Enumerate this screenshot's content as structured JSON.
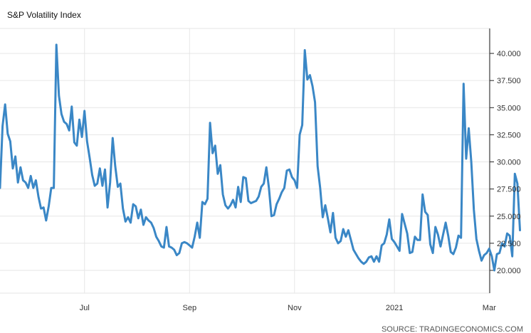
{
  "chart_data": {
    "type": "line",
    "title": "S&P Volatility Index",
    "source": "SOURCE: TRADINGECONOMICS.COM",
    "xlabel": "",
    "ylabel": "",
    "ylim": [
      17.9,
      42.3
    ],
    "xlim": [
      0,
      191.2
    ],
    "grid": true,
    "y_ticks": [
      "20.000",
      "22.500",
      "25.000",
      "27.500",
      "30.000",
      "32.500",
      "35.000",
      "37.500",
      "40.000"
    ],
    "x_ticks": [
      {
        "label": "Jul",
        "index": 33
      },
      {
        "label": "Sep",
        "index": 74
      },
      {
        "label": "Nov",
        "index": 115
      },
      {
        "label": "2021",
        "index": 154
      },
      {
        "label": "Mar",
        "index": 191
      }
    ],
    "series": [
      {
        "color": "#3a87c6",
        "values": [
          27.6,
          33.3,
          35.3,
          32.6,
          31.9,
          29.4,
          30.5,
          28.1,
          29.5,
          28.3,
          28.1,
          27.6,
          28.7,
          27.6,
          28.3,
          26.8,
          25.7,
          25.8,
          24.6,
          25.9,
          27.6,
          27.6,
          40.8,
          36.1,
          34.4,
          33.7,
          33.5,
          32.9,
          35.1,
          31.8,
          31.5,
          33.9,
          32.3,
          34.7,
          31.9,
          30.4,
          28.8,
          27.8,
          28.0,
          29.4,
          27.8,
          29.3,
          25.8,
          28.1,
          32.2,
          29.6,
          27.7,
          28.0,
          25.7,
          24.5,
          24.9,
          24.4,
          26.1,
          25.9,
          24.8,
          25.6,
          24.2,
          24.9,
          24.6,
          24.4,
          23.9,
          23.1,
          22.7,
          22.2,
          22.1,
          24.0,
          22.2,
          22.1,
          21.9,
          21.4,
          21.6,
          22.5,
          22.6,
          22.5,
          22.3,
          22.1,
          23.1,
          24.4,
          23.0,
          26.3,
          26.1,
          26.6,
          33.6,
          30.8,
          31.5,
          28.9,
          29.7,
          27.0,
          26.0,
          25.7,
          26.0,
          26.5,
          25.8,
          27.7,
          26.3,
          28.6,
          28.5,
          26.4,
          26.2,
          26.3,
          26.4,
          26.8,
          27.7,
          28.0,
          29.5,
          27.6,
          25.0,
          25.1,
          26.1,
          26.6,
          27.2,
          27.6,
          29.2,
          29.3,
          28.6,
          28.3,
          27.6,
          32.5,
          33.4,
          40.3,
          37.6,
          38.0,
          37.0,
          35.5,
          29.6,
          27.6,
          24.9,
          26.0,
          24.8,
          23.5,
          25.3,
          23.0,
          22.5,
          22.7,
          23.8,
          23.1,
          23.7,
          22.8,
          21.9,
          21.5,
          21.1,
          20.8,
          20.6,
          20.8,
          21.2,
          21.3,
          20.8,
          21.3,
          20.8,
          22.3,
          22.5,
          23.3,
          24.7,
          22.9,
          22.6,
          22.2,
          21.8,
          25.2,
          24.3,
          23.4,
          21.6,
          21.7,
          23.1,
          22.8,
          22.8,
          27.0,
          25.4,
          25.1,
          22.4,
          21.6,
          24.0,
          23.3,
          22.2,
          23.3,
          24.4,
          23.2,
          21.7,
          21.5,
          22.1,
          23.2,
          23.0,
          37.2,
          30.3,
          33.1,
          30.0,
          25.6,
          22.9,
          21.8,
          20.9,
          21.4,
          21.6,
          22.0,
          21.3,
          20.0,
          21.5,
          21.6,
          22.5,
          22.2,
          23.4,
          23.2,
          21.3,
          28.9,
          28.0,
          23.7
        ]
      }
    ]
  }
}
